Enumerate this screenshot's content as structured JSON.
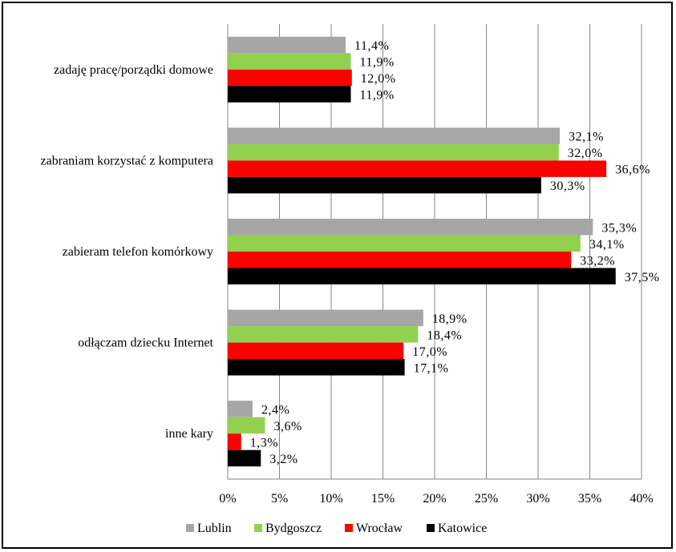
{
  "chart_data": {
    "type": "bar",
    "orientation": "horizontal",
    "categories": [
      "zadaję pracę/porządki domowe",
      "zabraniam korzystać z komputera",
      "zabieram telefon komórkowy",
      "odłączam dziecku Internet",
      "inne kary"
    ],
    "series": [
      {
        "name": "Lublin",
        "color": "#a6a6a6",
        "values": [
          11.4,
          32.1,
          35.3,
          18.9,
          2.4
        ],
        "labels": [
          "11,4%",
          "32,1%",
          "35,3%",
          "18,9%",
          "2,4%"
        ]
      },
      {
        "name": "Bydgoszcz",
        "color": "#92d050",
        "values": [
          11.9,
          32.0,
          34.1,
          18.4,
          3.6
        ],
        "labels": [
          "11,9%",
          "32,0%",
          "34,1%",
          "18,4%",
          "3,6%"
        ]
      },
      {
        "name": "Wrocław",
        "color": "#ff0000",
        "values": [
          12.0,
          36.6,
          33.2,
          17.0,
          1.3
        ],
        "labels": [
          "12,0%",
          "36,6%",
          "33,2%",
          "17,0%",
          "1,3%"
        ]
      },
      {
        "name": "Katowice",
        "color": "#000000",
        "values": [
          11.9,
          30.3,
          37.5,
          17.1,
          3.2
        ],
        "labels": [
          "11,9%",
          "30,3%",
          "37,5%",
          "17,1%",
          "3,2%"
        ]
      }
    ],
    "xlim": [
      0,
      40
    ],
    "xticks": [
      0,
      5,
      10,
      15,
      20,
      25,
      30,
      35,
      40
    ],
    "xtick_labels": [
      "0%",
      "5%",
      "10%",
      "15%",
      "20%",
      "25%",
      "30%",
      "35%",
      "40%"
    ],
    "grid": "vertical",
    "legend": "bottom"
  }
}
